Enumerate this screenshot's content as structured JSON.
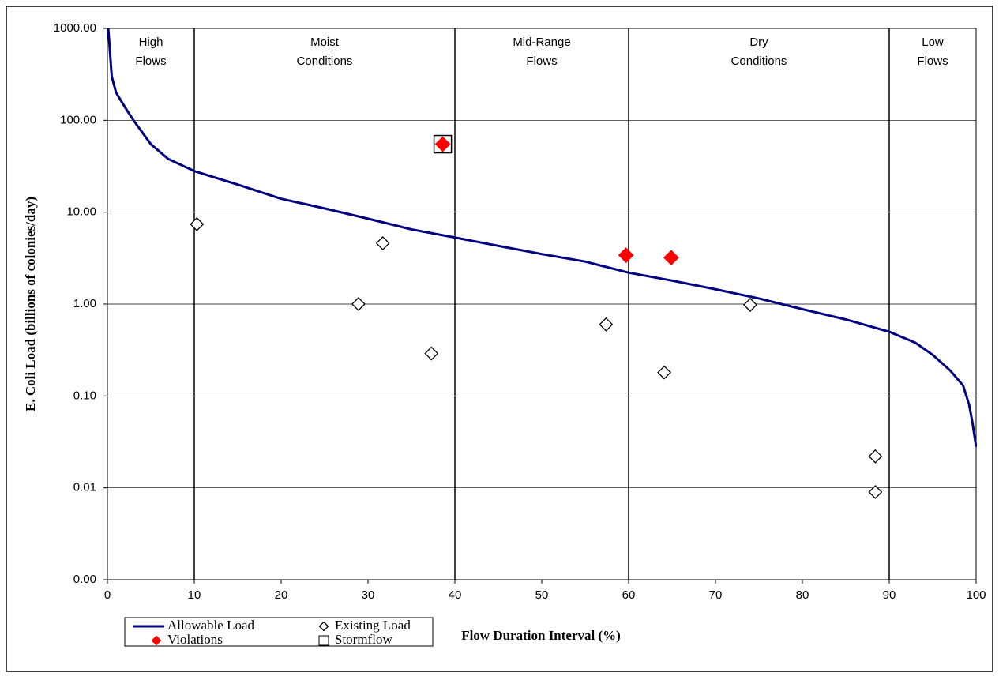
{
  "chart_data": {
    "type": "line",
    "x_label": "Flow Duration Interval (%)",
    "y_label": "E. Coli Load (billions of colonies/day)",
    "xlim": [
      0,
      100
    ],
    "xticks": [
      0,
      10,
      20,
      30,
      40,
      50,
      60,
      70,
      80,
      90,
      100
    ],
    "ylim": [
      0.001,
      1000
    ],
    "y_scale": "log",
    "yticks": [
      {
        "value": 0.001,
        "label": "0.00"
      },
      {
        "value": 0.01,
        "label": "0.01"
      },
      {
        "value": 0.1,
        "label": "0.10"
      },
      {
        "value": 1,
        "label": "1.00"
      },
      {
        "value": 10,
        "label": "10.00"
      },
      {
        "value": 100,
        "label": "100.00"
      },
      {
        "value": 1000,
        "label": "1000.00"
      }
    ],
    "grid": true,
    "zone_dividers": [
      10,
      40,
      60,
      90
    ],
    "zone_labels": [
      [
        "High",
        "Flows"
      ],
      [
        "Moist",
        "Conditions"
      ],
      [
        "Mid-Range",
        "Flows"
      ],
      [
        "Dry",
        "Conditions"
      ],
      [
        "Low",
        "Flows"
      ]
    ],
    "series": [
      {
        "name": "Allowable Load",
        "type": "line",
        "color": "#000080",
        "x": [
          0.1,
          0.5,
          1,
          2,
          3,
          5,
          7,
          10,
          15,
          20,
          25,
          30,
          35,
          40,
          45,
          50,
          55,
          60,
          65,
          70,
          75,
          80,
          85,
          90,
          93,
          95,
          97,
          98.5,
          99.2,
          99.6,
          100
        ],
        "values": [
          1000,
          300,
          200,
          140,
          100,
          55,
          38,
          28,
          20,
          14,
          11,
          8.5,
          6.5,
          5.3,
          4.3,
          3.5,
          2.9,
          2.2,
          1.8,
          1.45,
          1.15,
          0.88,
          0.68,
          0.5,
          0.38,
          0.28,
          0.19,
          0.13,
          0.08,
          0.05,
          0.028
        ]
      },
      {
        "name": "Existing Load",
        "type": "scatter",
        "marker": "diamond",
        "color": "#ffffff",
        "x": [
          10.3,
          28.9,
          31.7,
          37.3,
          57.4,
          64.1,
          74,
          88.4,
          88.4
        ],
        "values": [
          7.4,
          1.0,
          4.6,
          0.29,
          0.6,
          0.18,
          0.98,
          0.022,
          0.009
        ]
      },
      {
        "name": "Violations",
        "type": "scatter",
        "marker": "diamond",
        "color": "#ff0000",
        "x": [
          38.6,
          59.7,
          64.9
        ],
        "values": [
          55,
          3.4,
          3.2
        ]
      },
      {
        "name": "Stormflow",
        "type": "scatter",
        "marker": "square",
        "color": "none",
        "x": [
          38.6
        ],
        "values": [
          55
        ]
      }
    ]
  }
}
